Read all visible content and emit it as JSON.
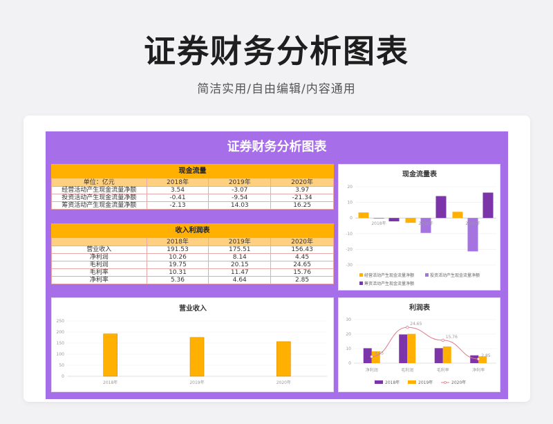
{
  "header": {
    "title": "证券财务分析图表",
    "subtitle": "简洁实用/自由编辑/内容通用"
  },
  "sheet": {
    "title": "证券财务分析图表"
  },
  "colors": {
    "sheet_bg": "#a66ee8",
    "orange": "#ffb000",
    "purple": "#7b35a8",
    "light_purple": "#a674e0",
    "line": "#e57a8a"
  },
  "cash_flow_table": {
    "title": "现金流量",
    "unit_label": "单位：亿元",
    "years": [
      "2018年",
      "2019年",
      "2020年"
    ],
    "rows": [
      {
        "label": "经营活动产生现金流量净额",
        "values": [
          "3.54",
          "-3.07",
          "3.97"
        ]
      },
      {
        "label": "投资活动产生现金流量净额",
        "values": [
          "-0.41",
          "-9.54",
          "-21.34"
        ]
      },
      {
        "label": "筹资活动产生现金流量净额",
        "values": [
          "-2.13",
          "14.03",
          "16.25"
        ]
      }
    ]
  },
  "income_table": {
    "title": "收入利润表",
    "years": [
      "2018年",
      "2019年",
      "2020年"
    ],
    "rows": [
      {
        "label": "营业收入",
        "values": [
          "191.53",
          "175.51",
          "156.43"
        ]
      },
      {
        "label": "净利润",
        "values": [
          "10.26",
          "8.14",
          "4.45"
        ]
      },
      {
        "label": "毛利润",
        "values": [
          "19.75",
          "20.15",
          "24.65"
        ]
      },
      {
        "label": "毛利率",
        "values": [
          "10.31",
          "11.47",
          "15.76"
        ]
      },
      {
        "label": "净利率",
        "values": [
          "5.36",
          "4.64",
          "2.85"
        ]
      }
    ]
  },
  "chart_data": [
    {
      "id": "cash",
      "type": "bar",
      "title": "现金流量表",
      "categories": [
        "2018年",
        "2019年",
        "2020年"
      ],
      "ylim": [
        -30,
        20
      ],
      "yticks": [
        -30,
        -20,
        -10,
        0,
        10,
        20
      ],
      "series": [
        {
          "name": "经营活动产生现金流量净额",
          "values": [
            3.54,
            -3.07,
            3.97
          ],
          "color": "#ffb000"
        },
        {
          "name": "投资活动产生现金流量净额",
          "values": [
            -0.41,
            -9.54,
            -21.34
          ],
          "color": "#a674e0"
        },
        {
          "name": "筹资活动产生现金流量净额",
          "values": [
            -2.13,
            14.03,
            16.25
          ],
          "color": "#7b35a8"
        }
      ],
      "legend": "bottom"
    },
    {
      "id": "revenue",
      "type": "bar",
      "title": "营业收入",
      "categories": [
        "2018年",
        "2019年",
        "2020年"
      ],
      "ylim": [
        0,
        250
      ],
      "yticks": [
        0,
        50,
        100,
        150,
        200,
        250
      ],
      "series": [
        {
          "name": "营业收入",
          "values": [
            191.53,
            175.51,
            156.43
          ],
          "color": "#ffb000"
        }
      ]
    },
    {
      "id": "profit",
      "type": "bar",
      "title": "利润表",
      "categories": [
        "净利润",
        "毛利润",
        "毛利率",
        "净利率"
      ],
      "ylim": [
        0,
        30
      ],
      "yticks": [
        0,
        10,
        20,
        30
      ],
      "series": [
        {
          "name": "2018年",
          "values": [
            10.26,
            19.75,
            10.31,
            5.36
          ],
          "color": "#7b35a8",
          "kind": "bar"
        },
        {
          "name": "2019年",
          "values": [
            8.14,
            20.15,
            11.47,
            4.64
          ],
          "color": "#ffb000",
          "kind": "bar"
        },
        {
          "name": "2020年",
          "values": [
            4.45,
            24.65,
            15.76,
            2.85
          ],
          "color": "#e57a8a",
          "kind": "line"
        }
      ],
      "data_labels": [
        "4.45",
        "24.65",
        "15.76",
        "2.85"
      ],
      "legend": "bottom"
    }
  ]
}
